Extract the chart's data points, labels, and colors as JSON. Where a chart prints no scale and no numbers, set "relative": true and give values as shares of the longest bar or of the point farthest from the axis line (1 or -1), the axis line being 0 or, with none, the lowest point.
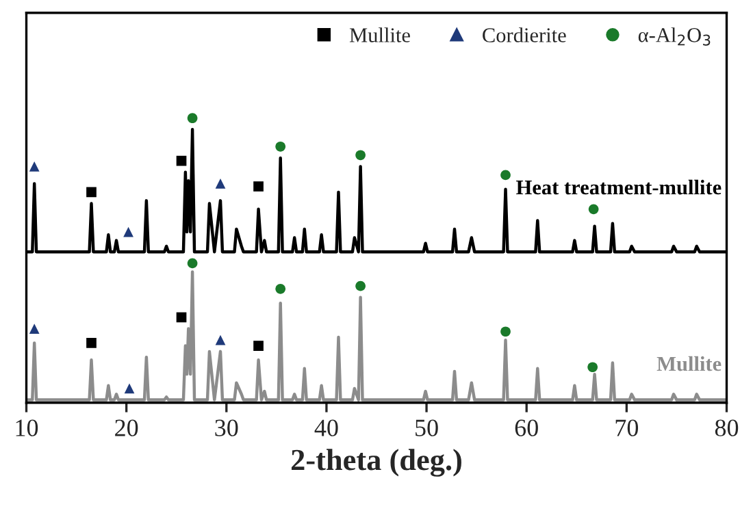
{
  "chart_data": {
    "type": "line",
    "relative": true,
    "xlabel": "2-theta (deg.)",
    "xlim": [
      10,
      80
    ],
    "xticks": [
      10,
      20,
      30,
      40,
      50,
      60,
      70,
      80
    ],
    "tick_labels": "x",
    "legend": "top right",
    "grid": false,
    "series": [
      {
        "name": "Heat treatment-mullite",
        "color": "#000000",
        "x": [
          10,
          10.6,
          10.8,
          11.0,
          16.3,
          16.5,
          16.7,
          18.0,
          18.2,
          18.4,
          18.8,
          19.0,
          19.2,
          21.8,
          22.0,
          22.2,
          23.8,
          24.0,
          24.2,
          25.7,
          25.9,
          26.05,
          26.2,
          26.4,
          26.6,
          26.8,
          28.1,
          28.3,
          28.8,
          29.4,
          29.6,
          30.8,
          31.0,
          31.5,
          31.7,
          33.0,
          33.2,
          33.5,
          33.8,
          34.0,
          35.2,
          35.4,
          35.6,
          36.6,
          36.8,
          37.0,
          37.6,
          37.8,
          38.0,
          39.3,
          39.5,
          39.7,
          41.0,
          41.2,
          41.4,
          42.6,
          42.8,
          43.2,
          43.4,
          43.6,
          49.7,
          49.9,
          50.1,
          52.6,
          52.8,
          53.0,
          54.2,
          54.5,
          54.8,
          57.7,
          57.9,
          58.1,
          60.9,
          61.1,
          61.3,
          64.6,
          64.8,
          65.0,
          66.6,
          66.8,
          67.0,
          68.4,
          68.6,
          68.8,
          70.3,
          70.5,
          70.8,
          74.5,
          74.7,
          75.0,
          76.8,
          77.0,
          77.3,
          80
        ],
        "values": [
          0.53,
          0.53,
          0.77,
          0.53,
          0.53,
          0.7,
          0.53,
          0.53,
          0.59,
          0.53,
          0.53,
          0.57,
          0.53,
          0.53,
          0.71,
          0.53,
          0.53,
          0.55,
          0.53,
          0.53,
          0.81,
          0.6,
          0.78,
          0.6,
          0.96,
          0.53,
          0.53,
          0.7,
          0.53,
          0.71,
          0.53,
          0.53,
          0.61,
          0.55,
          0.53,
          0.53,
          0.68,
          0.53,
          0.57,
          0.53,
          0.53,
          0.86,
          0.53,
          0.53,
          0.58,
          0.53,
          0.53,
          0.61,
          0.53,
          0.53,
          0.59,
          0.53,
          0.53,
          0.74,
          0.53,
          0.53,
          0.58,
          0.53,
          0.83,
          0.53,
          0.53,
          0.56,
          0.53,
          0.53,
          0.61,
          0.53,
          0.53,
          0.58,
          0.53,
          0.53,
          0.75,
          0.53,
          0.53,
          0.64,
          0.53,
          0.53,
          0.57,
          0.53,
          0.53,
          0.62,
          0.53,
          0.53,
          0.63,
          0.53,
          0.53,
          0.55,
          0.53,
          0.53,
          0.55,
          0.53,
          0.53,
          0.55,
          0.53,
          0.53
        ]
      },
      {
        "name": "Mullite",
        "color": "#8c8c8c",
        "x": [
          10,
          10.6,
          10.8,
          11.0,
          16.3,
          16.5,
          16.7,
          18.0,
          18.2,
          18.4,
          18.8,
          19.0,
          19.2,
          21.8,
          22.0,
          22.2,
          23.8,
          24.0,
          24.2,
          25.7,
          25.9,
          26.05,
          26.2,
          26.4,
          26.6,
          26.8,
          28.1,
          28.3,
          28.8,
          29.4,
          29.6,
          30.8,
          31.0,
          31.5,
          31.7,
          33.0,
          33.2,
          33.5,
          33.8,
          34.0,
          35.2,
          35.4,
          35.6,
          36.6,
          36.8,
          37.0,
          37.6,
          37.8,
          38.0,
          39.3,
          39.5,
          39.7,
          41.0,
          41.2,
          41.4,
          42.6,
          42.8,
          43.2,
          43.4,
          43.6,
          49.7,
          49.9,
          50.1,
          52.6,
          52.8,
          53.0,
          54.2,
          54.5,
          54.8,
          57.7,
          57.9,
          58.1,
          60.9,
          61.1,
          61.3,
          64.6,
          64.8,
          65.0,
          66.6,
          66.8,
          67.0,
          68.4,
          68.6,
          68.8,
          70.3,
          70.5,
          70.8,
          74.5,
          74.7,
          75.0,
          76.8,
          77.0,
          77.3,
          80
        ],
        "values": [
          0.01,
          0.01,
          0.21,
          0.01,
          0.01,
          0.15,
          0.01,
          0.01,
          0.06,
          0.01,
          0.01,
          0.03,
          0.01,
          0.01,
          0.16,
          0.01,
          0.01,
          0.02,
          0.01,
          0.01,
          0.2,
          0.1,
          0.26,
          0.1,
          0.46,
          0.01,
          0.01,
          0.18,
          0.01,
          0.18,
          0.01,
          0.01,
          0.07,
          0.03,
          0.01,
          0.01,
          0.15,
          0.01,
          0.04,
          0.01,
          0.01,
          0.35,
          0.01,
          0.01,
          0.03,
          0.01,
          0.01,
          0.12,
          0.01,
          0.01,
          0.06,
          0.01,
          0.01,
          0.23,
          0.01,
          0.01,
          0.05,
          0.01,
          0.37,
          0.01,
          0.01,
          0.04,
          0.01,
          0.01,
          0.11,
          0.01,
          0.01,
          0.07,
          0.01,
          0.01,
          0.22,
          0.01,
          0.01,
          0.12,
          0.01,
          0.01,
          0.06,
          0.01,
          0.01,
          0.1,
          0.01,
          0.01,
          0.14,
          0.01,
          0.01,
          0.03,
          0.01,
          0.01,
          0.03,
          0.01,
          0.01,
          0.03,
          0.01,
          0.01
        ]
      },
      {
        "name": "Mullite",
        "color": "#000000",
        "type": "scatter",
        "marker": "square",
        "x": [
          16.5,
          25.5,
          33.2,
          16.5,
          25.5,
          33.2
        ],
        "values": [
          0.74,
          0.85,
          0.76,
          0.21,
          0.3,
          0.2
        ]
      },
      {
        "name": "Cordierite",
        "color": "#1f3a7a",
        "type": "scatter",
        "marker": "triangle",
        "x": [
          10.8,
          20.2,
          29.4,
          10.8,
          20.3,
          29.4
        ],
        "values": [
          0.83,
          0.6,
          0.77,
          0.26,
          0.05,
          0.22
        ]
      },
      {
        "name": "α-Al$_{2}$O$_{3}$",
        "color": "#1a7a2a",
        "type": "scatter",
        "marker": "circle",
        "x": [
          26.6,
          35.4,
          43.4,
          57.9,
          66.7,
          26.6,
          35.4,
          43.4,
          57.9,
          66.6
        ],
        "values": [
          1.0,
          0.9,
          0.87,
          0.8,
          0.68,
          0.49,
          0.4,
          0.41,
          0.25,
          0.125
        ]
      }
    ]
  }
}
